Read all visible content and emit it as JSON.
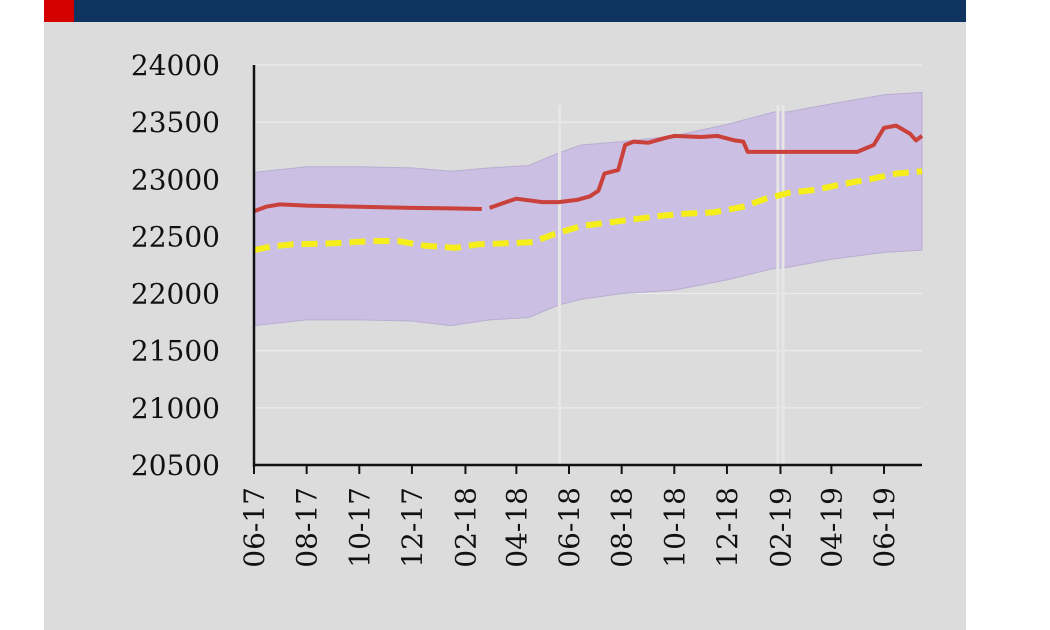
{
  "header": {
    "bar_color": "#0f3460",
    "accent_color": "#d40000"
  },
  "chart_data": {
    "type": "line",
    "title": "",
    "xlabel": "",
    "ylabel": "",
    "ylim": [
      20500,
      24000
    ],
    "yticks": [
      "24000",
      "23500",
      "23000",
      "22500",
      "22000",
      "21500",
      "21000",
      "20500"
    ],
    "xticks": [
      "06-17",
      "08-17",
      "10-17",
      "12-17",
      "02-18",
      "04-18",
      "06-18",
      "08-18",
      "10-18",
      "12-18",
      "02-19",
      "04-19",
      "06-19"
    ],
    "x_start": "2017-06-01",
    "x_end": "2019-07-15",
    "grid": true,
    "series": [
      {
        "style": "band",
        "color": "#cbbfe3",
        "upper": [
          [
            "2017-06-01",
            23060
          ],
          [
            "2017-08-01",
            23110
          ],
          [
            "2017-10-01",
            23110
          ],
          [
            "2017-12-01",
            23100
          ],
          [
            "2018-01-15",
            23070
          ],
          [
            "2018-03-01",
            23100
          ],
          [
            "2018-04-15",
            23120
          ],
          [
            "2018-05-20",
            23230
          ],
          [
            "2018-06-15",
            23300
          ],
          [
            "2018-08-01",
            23330
          ],
          [
            "2018-10-01",
            23380
          ],
          [
            "2018-12-01",
            23480
          ],
          [
            "2019-01-25",
            23590
          ],
          [
            "2019-02-10",
            23590
          ],
          [
            "2019-04-01",
            23660
          ],
          [
            "2019-06-01",
            23740
          ],
          [
            "2019-07-15",
            23760
          ]
        ],
        "lower": [
          [
            "2017-06-01",
            21720
          ],
          [
            "2017-08-01",
            21770
          ],
          [
            "2017-10-01",
            21770
          ],
          [
            "2017-12-01",
            21760
          ],
          [
            "2018-01-15",
            21720
          ],
          [
            "2018-03-01",
            21770
          ],
          [
            "2018-04-15",
            21790
          ],
          [
            "2018-05-20",
            21900
          ],
          [
            "2018-06-15",
            21950
          ],
          [
            "2018-08-01",
            22000
          ],
          [
            "2018-10-01",
            22030
          ],
          [
            "2018-12-01",
            22120
          ],
          [
            "2019-01-25",
            22220
          ],
          [
            "2019-02-10",
            22230
          ],
          [
            "2019-04-01",
            22300
          ],
          [
            "2019-06-01",
            22360
          ],
          [
            "2019-07-15",
            22380
          ]
        ]
      },
      {
        "style": "solid",
        "color": "#c9413a",
        "values": [
          [
            "2017-06-01",
            22720
          ],
          [
            "2017-06-15",
            22760
          ],
          [
            "2017-07-01",
            22780
          ],
          [
            "2017-08-01",
            22770
          ],
          [
            "2017-10-01",
            22760
          ],
          [
            "2017-12-01",
            22750
          ],
          [
            "2018-01-15",
            22745
          ],
          [
            "2018-02-20",
            22740
          ],
          [
            "2018-03-01",
            22750
          ],
          [
            "2018-03-20",
            22800
          ],
          [
            "2018-04-01",
            22830
          ],
          [
            "2018-05-01",
            22800
          ],
          [
            "2018-05-20",
            22800
          ],
          [
            "2018-06-10",
            22820
          ],
          [
            "2018-06-25",
            22850
          ],
          [
            "2018-07-05",
            22900
          ],
          [
            "2018-07-12",
            23050
          ],
          [
            "2018-07-28",
            23080
          ],
          [
            "2018-08-05",
            23300
          ],
          [
            "2018-08-15",
            23330
          ],
          [
            "2018-09-01",
            23320
          ],
          [
            "2018-09-20",
            23360
          ],
          [
            "2018-10-01",
            23380
          ],
          [
            "2018-11-01",
            23370
          ],
          [
            "2018-11-20",
            23380
          ],
          [
            "2018-12-10",
            23340
          ],
          [
            "2018-12-20",
            23330
          ],
          [
            "2018-12-25",
            23240
          ],
          [
            "2019-01-20",
            23240
          ],
          [
            "2019-03-01",
            23240
          ],
          [
            "2019-05-01",
            23240
          ],
          [
            "2019-05-20",
            23300
          ],
          [
            "2019-06-01",
            23450
          ],
          [
            "2019-06-15",
            23470
          ],
          [
            "2019-07-01",
            23400
          ],
          [
            "2019-07-08",
            23340
          ],
          [
            "2019-07-15",
            23380
          ]
        ]
      },
      {
        "style": "dashed",
        "color": "#f5ee1a",
        "values": [
          [
            "2017-06-01",
            22380
          ],
          [
            "2017-06-20",
            22410
          ],
          [
            "2017-07-15",
            22430
          ],
          [
            "2017-09-01",
            22440
          ],
          [
            "2017-10-15",
            22460
          ],
          [
            "2017-11-15",
            22460
          ],
          [
            "2017-12-15",
            22420
          ],
          [
            "2018-01-20",
            22400
          ],
          [
            "2018-02-15",
            22430
          ],
          [
            "2018-03-20",
            22440
          ],
          [
            "2018-04-20",
            22450
          ],
          [
            "2018-05-15",
            22520
          ],
          [
            "2018-06-15",
            22590
          ],
          [
            "2018-07-15",
            22620
          ],
          [
            "2018-08-15",
            22650
          ],
          [
            "2018-09-15",
            22680
          ],
          [
            "2018-10-15",
            22700
          ],
          [
            "2018-11-15",
            22710
          ],
          [
            "2018-12-20",
            22760
          ],
          [
            "2019-01-15",
            22830
          ],
          [
            "2019-02-10",
            22880
          ],
          [
            "2019-03-15",
            22910
          ],
          [
            "2019-04-15",
            22960
          ],
          [
            "2019-05-15",
            23000
          ],
          [
            "2019-06-15",
            23050
          ],
          [
            "2019-07-15",
            23070
          ]
        ]
      }
    ]
  }
}
